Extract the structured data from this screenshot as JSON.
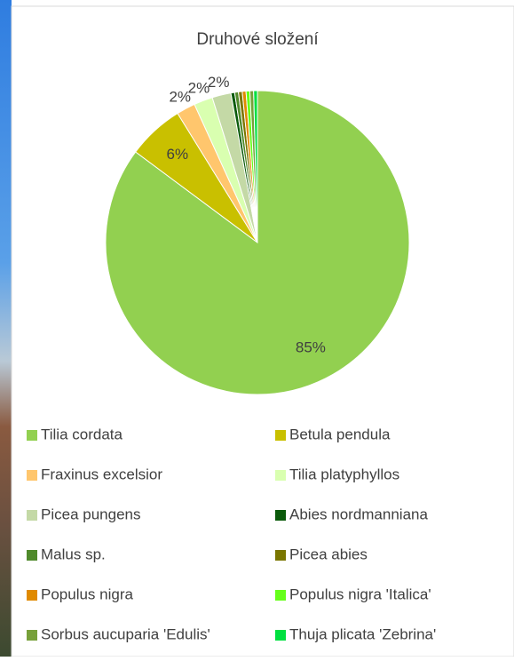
{
  "chart_data": {
    "type": "pie",
    "title": "Druhové složení",
    "categories": [
      "Tilia cordata",
      "Betula pendula",
      "Fraxinus excelsior",
      "Tilia platyphyllos",
      "Picea pungens",
      "Abies nordmanniana",
      "Malus sp.",
      "Picea abies",
      "Populus nigra",
      "Populus nigra 'Italica'",
      "Sorbus aucuparia 'Edulis'",
      "Thuja plicata 'Zebrina'"
    ],
    "values": [
      85,
      6,
      2,
      2,
      2,
      0.4,
      0.4,
      0.4,
      0.4,
      0.4,
      0.4,
      0.4
    ],
    "value_labels": [
      "85%",
      "6%",
      "2%",
      "2%",
      "2%",
      null,
      null,
      null,
      null,
      null,
      null,
      null
    ],
    "colors": [
      "#92d050",
      "#c9c000",
      "#ffc66d",
      "#d9ffb0",
      "#c4d9a6",
      "#0b5a0b",
      "#4f8a2b",
      "#7a7600",
      "#e08a00",
      "#66ff1a",
      "#77a03a",
      "#00e040"
    ],
    "legend": "bottom"
  }
}
